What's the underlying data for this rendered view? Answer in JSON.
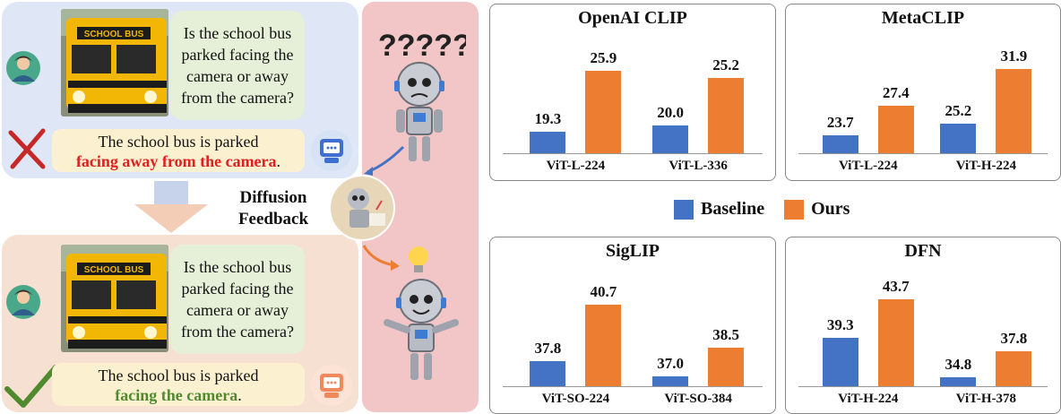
{
  "left": {
    "top_question": "Is the school bus parked facing the camera or away from the camera?",
    "top_answer_prefix": "The school bus is parked",
    "top_answer_highlight": "facing away from the camera",
    "top_answer_suffix": ".",
    "bottom_question": "Is the school bus parked facing the camera or away from the camera?",
    "bottom_answer_prefix": "The school bus is parked",
    "bottom_answer_highlight": "facing the camera",
    "bottom_answer_suffix": ".",
    "bus_sign": "SCHOOL BUS",
    "diffusion_line1": "Diffusion",
    "diffusion_line2": "Feedback"
  },
  "middle": {
    "question_marks": "?????"
  },
  "legend": {
    "baseline": "Baseline",
    "ours": "Ours"
  },
  "colors": {
    "baseline": "#4472c4",
    "ours": "#ed7d31",
    "bad": "#e02020",
    "good": "#4f8a2e"
  },
  "chart_data": [
    {
      "type": "bar",
      "title": "OpenAI CLIP",
      "categories": [
        "ViT-L-224",
        "ViT-L-336"
      ],
      "series": [
        {
          "name": "Baseline",
          "values": [
            19.3,
            20.0
          ]
        },
        {
          "name": "Ours",
          "values": [
            25.9,
            25.2
          ]
        }
      ]
    },
    {
      "type": "bar",
      "title": "MetaCLIP",
      "categories": [
        "ViT-L-224",
        "ViT-H-224"
      ],
      "series": [
        {
          "name": "Baseline",
          "values": [
            23.7,
            25.2
          ]
        },
        {
          "name": "Ours",
          "values": [
            27.4,
            31.9
          ]
        }
      ]
    },
    {
      "type": "bar",
      "title": "SigLIP",
      "categories": [
        "ViT-SO-224",
        "ViT-SO-384"
      ],
      "series": [
        {
          "name": "Baseline",
          "values": [
            37.8,
            37.0
          ]
        },
        {
          "name": "Ours",
          "values": [
            40.7,
            38.5
          ]
        }
      ]
    },
    {
      "type": "bar",
      "title": "DFN",
      "categories": [
        "ViT-H-224",
        "ViT-H-378"
      ],
      "series": [
        {
          "name": "Baseline",
          "values": [
            39.3,
            34.8
          ]
        },
        {
          "name": "Ours",
          "values": [
            43.7,
            37.8
          ]
        }
      ]
    }
  ]
}
